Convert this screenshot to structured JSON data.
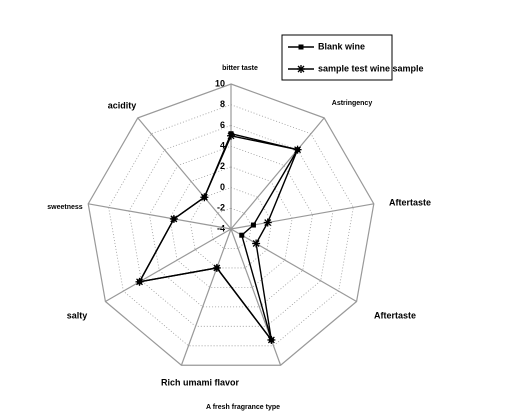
{
  "chart_data": {
    "type": "radar",
    "categories": [
      "bitter taste",
      "Astringency",
      "Aftertaste",
      "Aftertaste",
      "A fresh fragrance type",
      "Rich umami flavor",
      "salty",
      "sweetness",
      "acidity"
    ],
    "series": [
      {
        "name": "Blank wine",
        "color": "#000000",
        "marker": "square",
        "values": [
          5.2,
          6,
          -1.8,
          -2.8,
          7.4,
          0,
          6.2,
          1.6,
          0
        ]
      },
      {
        "name": "sample test wine sample",
        "color": "#000000",
        "marker": "star",
        "values": [
          5,
          6,
          -0.4,
          -1.2,
          7.4,
          0,
          6.2,
          1.6,
          0
        ]
      }
    ],
    "rlim": [
      -4,
      10
    ],
    "rticks": [
      -4,
      -2,
      0,
      2,
      4,
      6,
      8,
      10
    ],
    "grid": true,
    "legend": "upper right"
  }
}
